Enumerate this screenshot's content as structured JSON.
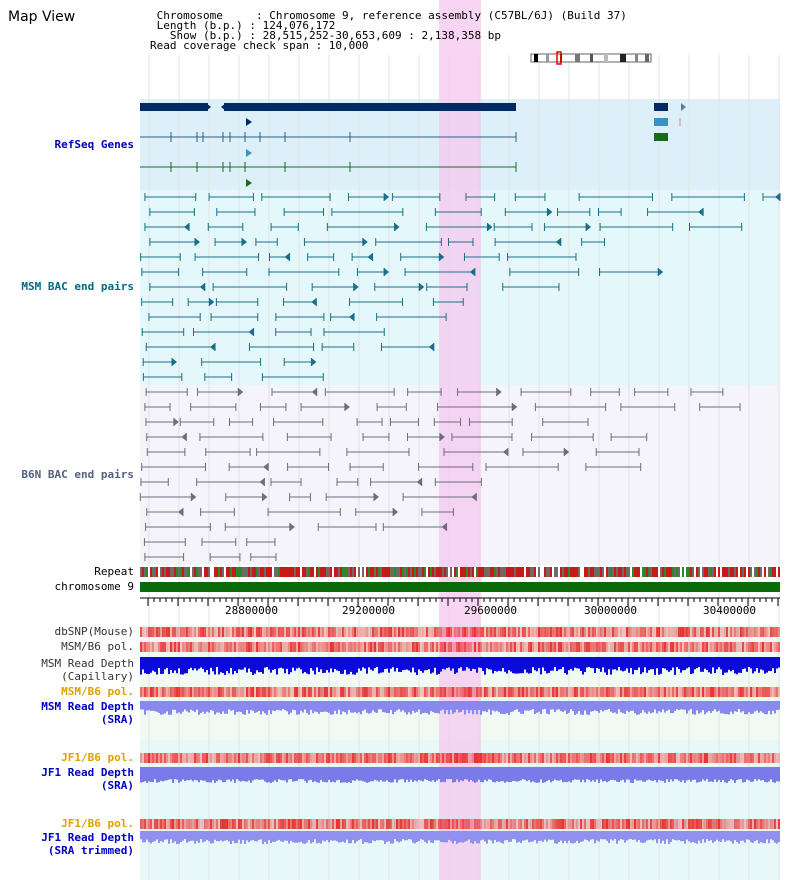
{
  "view": {
    "title": "Map View"
  },
  "info": {
    "line1": " Chromosome     : Chromosome 9, reference assembly (C57BL/6J) (Build 37)",
    "line2": " Length (b.p.) : 124,076,172",
    "line3": "   Show (b.p.) : 28,515,252-30,653,609 : 2,138,358 bp",
    "line4": "Read coverage check span : 10,000"
  },
  "tracks": {
    "refseq": "RefSeq Genes",
    "msm_bac": "MSM BAC end pairs",
    "b6n_bac": "B6N BAC end pairs",
    "repeat": "Repeat",
    "chromosome": "chromosome 9",
    "dbsnp": "dbSNP(Mouse)",
    "msm_b6_pol": "MSM/B6 pol.",
    "msm_read_depth_cap_1": "MSM Read Depth",
    "msm_read_depth_cap_2": "(Capillary)",
    "msm_b6_pol_2": "MSM/B6 pol.",
    "msm_read_depth_sra_1": "MSM Read Depth",
    "msm_read_depth_sra_2": "(SRA)",
    "jf1_b6_pol": "JF1/B6 pol.",
    "jf1_read_depth_1": "JF1 Read Depth",
    "jf1_read_depth_2": "(SRA)",
    "jf1_b6_pol_2": "JF1/B6 pol.",
    "jf1_read_depth_trim_1": "JF1 Read Depth",
    "jf1_read_depth_trim_2": "(SRA trimmed)"
  },
  "axis": {
    "ticks": [
      "28800000",
      "29200000",
      "29600000",
      "30000000",
      "30400000"
    ]
  },
  "colors": {
    "refseq_label": "#0000b0",
    "msm_label": "#006a80",
    "b6n_label": "#556080",
    "orange_label": "#e0a000",
    "blue_label": "#0000c0",
    "highlight": "#f5c8ef"
  }
}
